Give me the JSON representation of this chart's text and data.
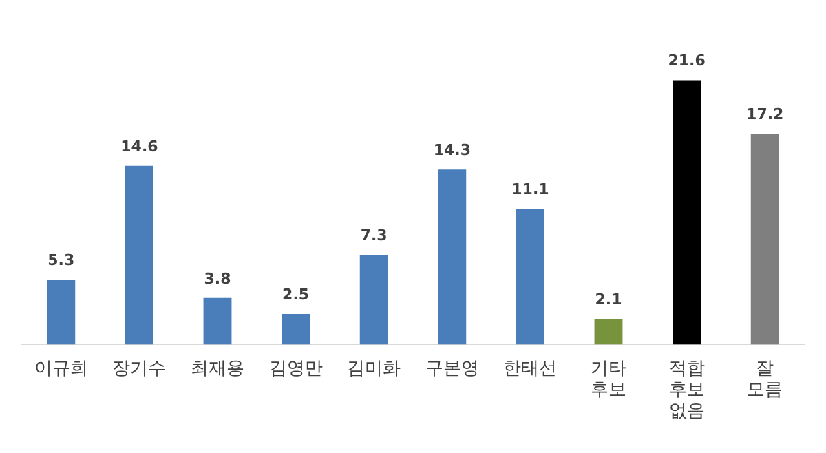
{
  "chart_data": {
    "type": "bar",
    "categories": [
      "이규희",
      "장기수",
      "최재용",
      "김영만",
      "김미화",
      "구본영",
      "한태선",
      "기타\n후보",
      "적합\n후보\n없음",
      "잘\n모름"
    ],
    "values": [
      5.3,
      14.6,
      3.8,
      2.5,
      7.3,
      14.3,
      11.1,
      2.1,
      21.6,
      17.2
    ],
    "colors": [
      "#4a7ebb",
      "#4a7ebb",
      "#4a7ebb",
      "#4a7ebb",
      "#4a7ebb",
      "#4a7ebb",
      "#4a7ebb",
      "#77933c",
      "#000000",
      "#7f7f7f"
    ],
    "data_labels": true,
    "grid": false,
    "legend": false
  }
}
